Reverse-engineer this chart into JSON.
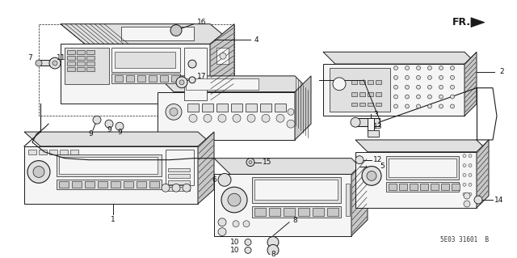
{
  "bg_color": "#ffffff",
  "line_color": "#1a1a1a",
  "label_color": "#111111",
  "diagram_code": "5E03 31601  B",
  "fr_label": "FR.",
  "label_fontsize": 6.5
}
